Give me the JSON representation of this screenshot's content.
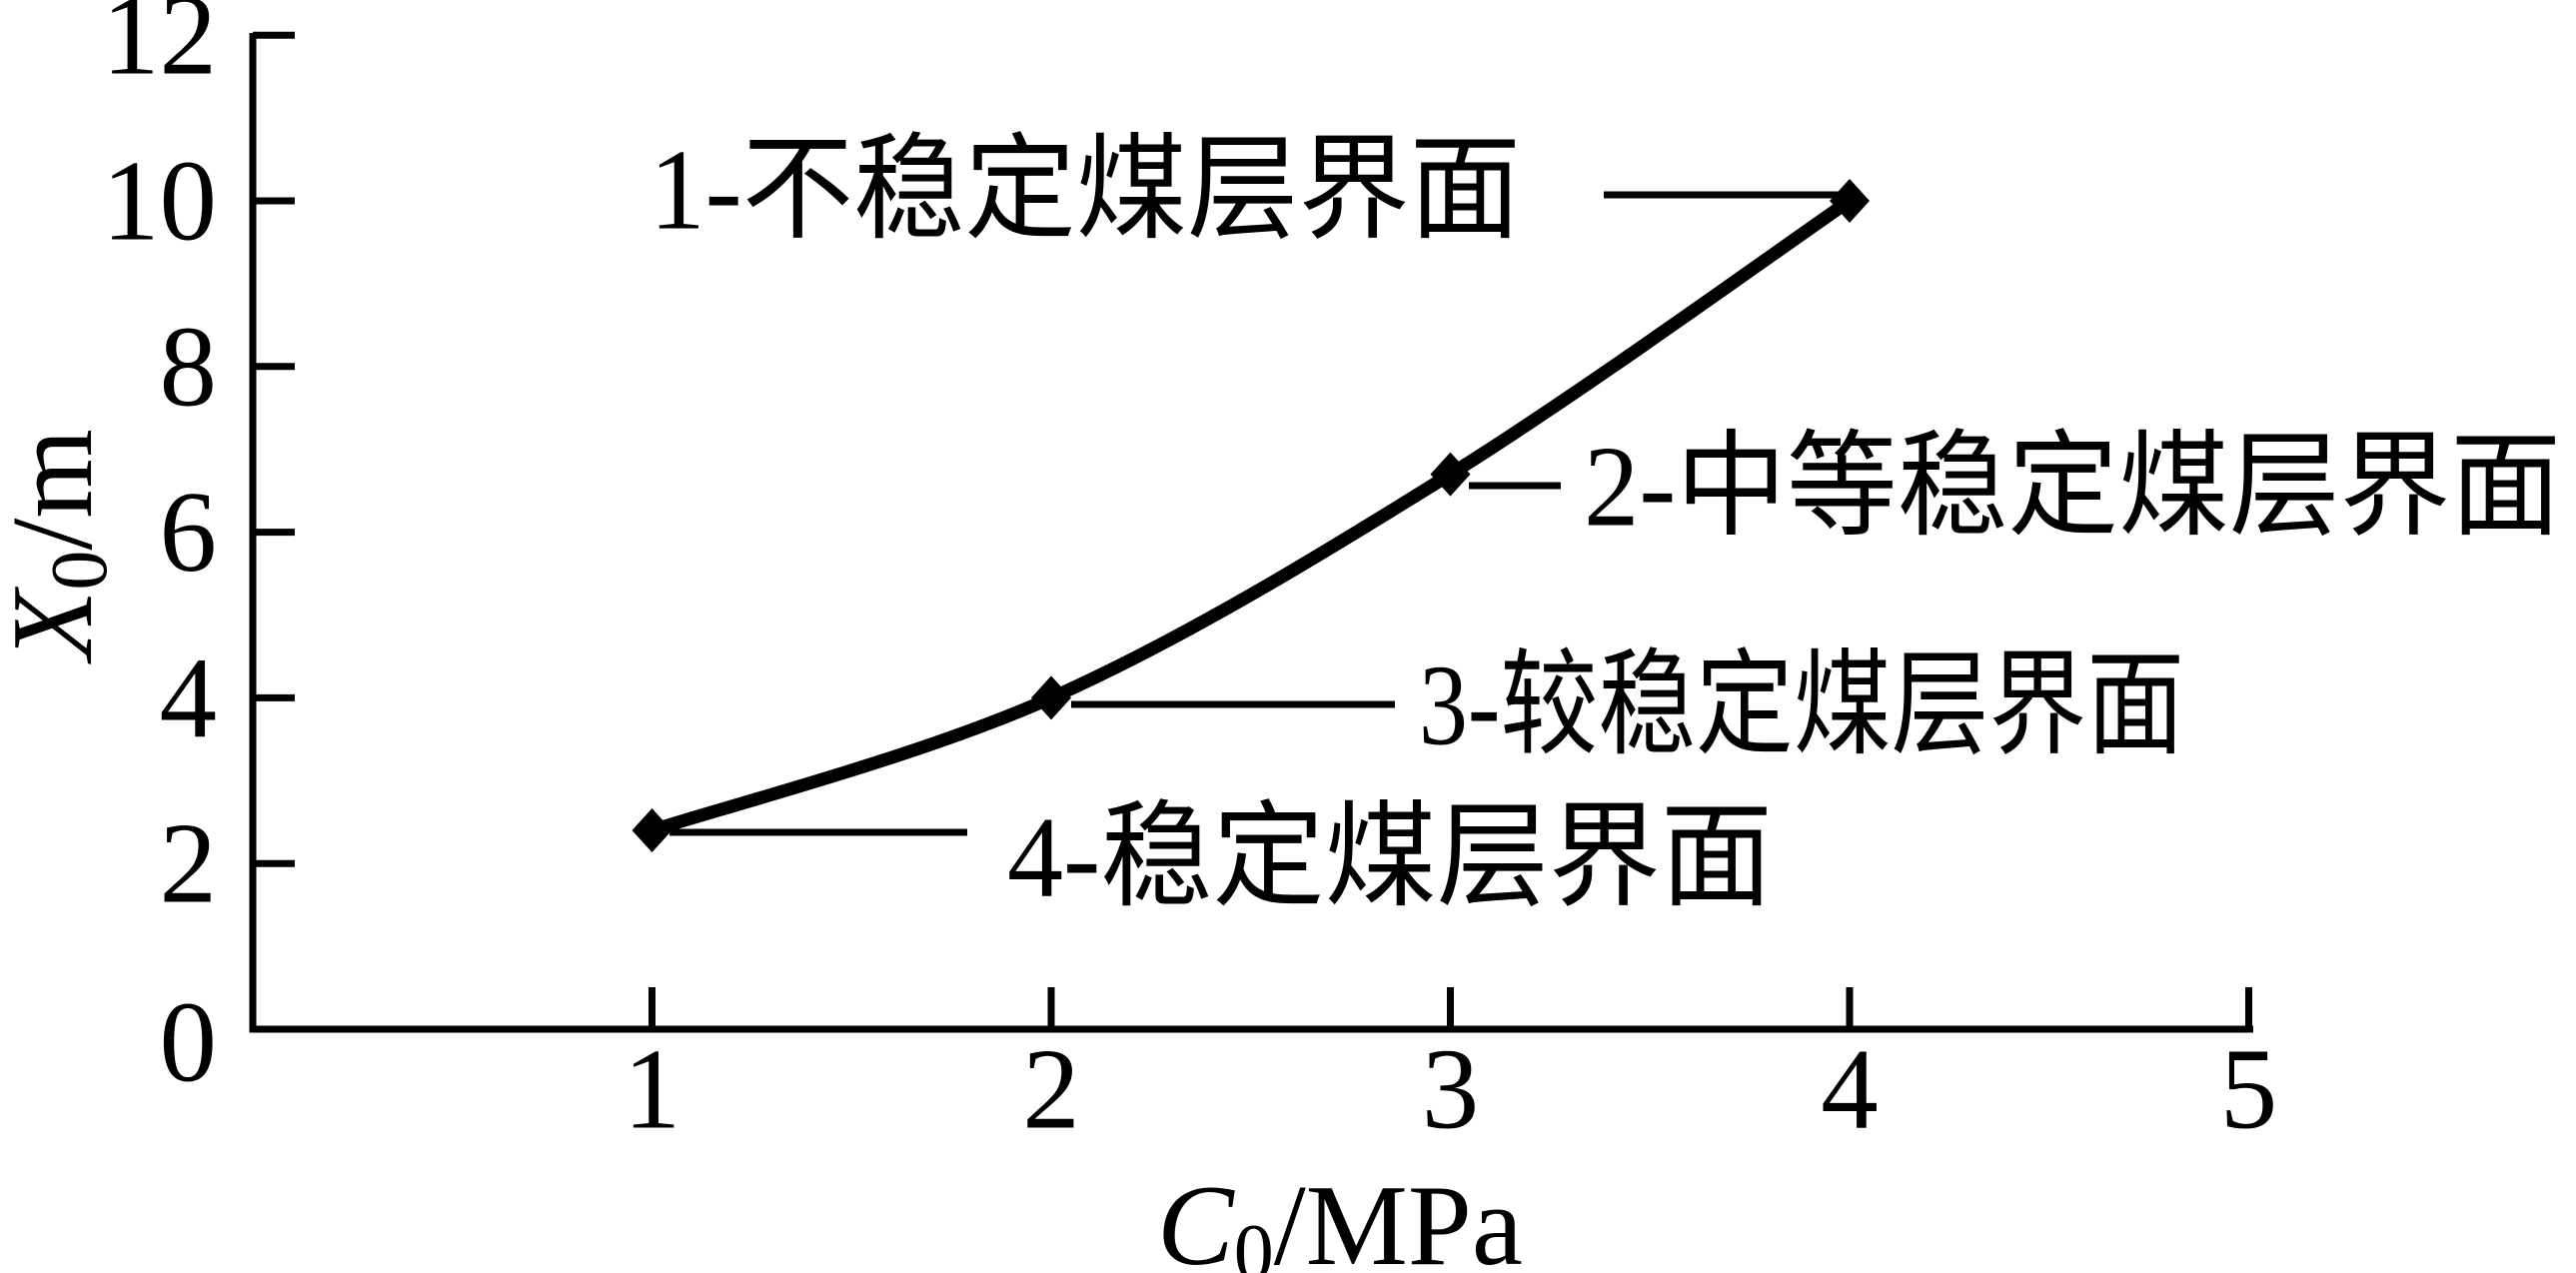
{
  "figure": {
    "background": "#ffffff",
    "ink": "#000000"
  },
  "chart_data": {
    "type": "line",
    "x": [
      1,
      2,
      3,
      4
    ],
    "series": [
      {
        "name": "X0",
        "values": [
          2.4,
          4.0,
          6.7,
          10.0
        ]
      }
    ],
    "title": "",
    "xlabel": "C0/MPa",
    "ylabel": "X0/m",
    "xlim": [
      0,
      5
    ],
    "ylim": [
      0,
      12
    ],
    "x_ticks": [
      1,
      2,
      3,
      4,
      5
    ],
    "y_ticks": [
      2,
      4,
      6,
      8,
      10,
      12
    ],
    "grid": false,
    "legend": "none",
    "marker": "diamond",
    "line_color": "#000000",
    "annotations": [
      {
        "label": "1-不稳定煤层界面",
        "point": {
          "x": 4,
          "y": 10.0
        },
        "side": "left"
      },
      {
        "label": "2-中等稳定煤层界面",
        "point": {
          "x": 3,
          "y": 6.7
        },
        "side": "right"
      },
      {
        "label": "3-较稳定煤层界面",
        "point": {
          "x": 2,
          "y": 4.0
        },
        "side": "right"
      },
      {
        "label": "4-稳定煤层界面",
        "point": {
          "x": 1,
          "y": 2.4
        },
        "side": "right"
      }
    ]
  },
  "axes": {
    "origin_label": "0",
    "xlabel_parts": {
      "variable": "C",
      "subscript": "0",
      "unit": "/MPa"
    },
    "ylabel_parts": {
      "variable": "X",
      "subscript": "0",
      "unit": "/m"
    }
  }
}
